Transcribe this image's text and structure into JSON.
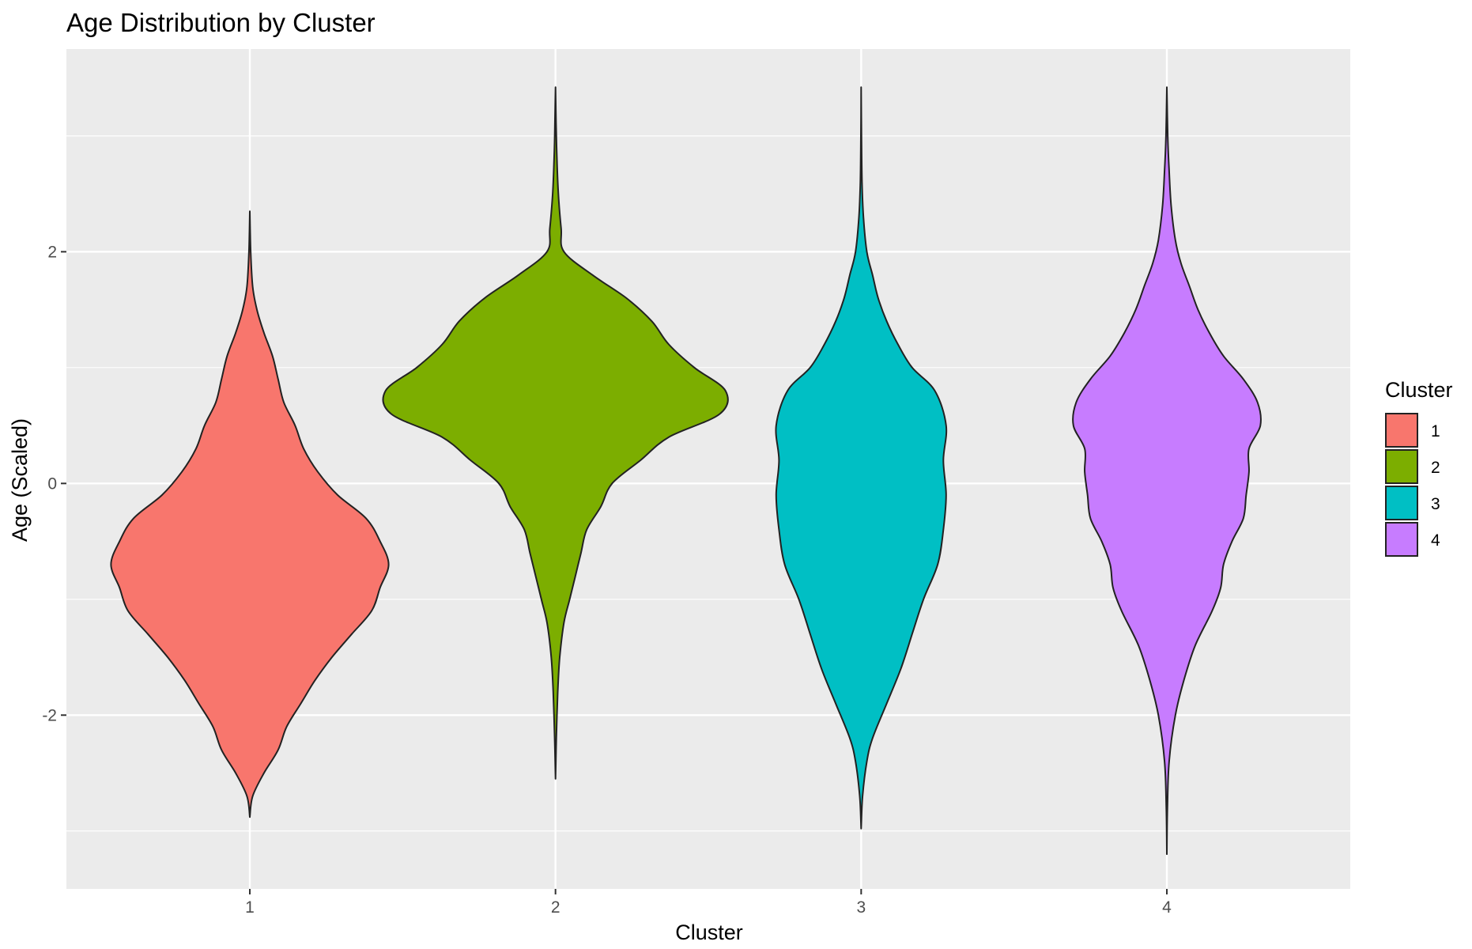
{
  "chart_data": {
    "type": "violin",
    "title": "Age Distribution by Cluster",
    "xlabel": "Cluster",
    "ylabel": "Age (Scaled)",
    "categories": [
      "1",
      "2",
      "3",
      "4"
    ],
    "yticks": [
      -2,
      0,
      2
    ],
    "ytick_labels": [
      "-2",
      "0",
      "2"
    ],
    "ylim": [
      -3.5,
      3.75
    ],
    "grid": true,
    "legend": {
      "title": "Cluster",
      "position": "right",
      "entries": [
        "1",
        "2",
        "3",
        "4"
      ]
    },
    "colors": [
      "#F8766D",
      "#7CAE00",
      "#00BFC4",
      "#C77CFF"
    ],
    "panel_background": "#EBEBEB",
    "series": [
      {
        "category": "1",
        "min": -2.88,
        "max": 2.35,
        "density": [
          [
            -2.88,
            0.0
          ],
          [
            -2.7,
            0.01
          ],
          [
            -2.5,
            0.05
          ],
          [
            -2.3,
            0.1
          ],
          [
            -2.1,
            0.13
          ],
          [
            -1.9,
            0.18
          ],
          [
            -1.7,
            0.23
          ],
          [
            -1.5,
            0.29
          ],
          [
            -1.3,
            0.36
          ],
          [
            -1.1,
            0.43
          ],
          [
            -0.9,
            0.46
          ],
          [
            -0.7,
            0.49
          ],
          [
            -0.5,
            0.46
          ],
          [
            -0.3,
            0.41
          ],
          [
            -0.1,
            0.31
          ],
          [
            0.1,
            0.24
          ],
          [
            0.3,
            0.19
          ],
          [
            0.5,
            0.16
          ],
          [
            0.7,
            0.12
          ],
          [
            0.9,
            0.1
          ],
          [
            1.1,
            0.08
          ],
          [
            1.3,
            0.05
          ],
          [
            1.5,
            0.025
          ],
          [
            1.7,
            0.01
          ],
          [
            2.0,
            0.003
          ],
          [
            2.35,
            0.0
          ]
        ]
      },
      {
        "category": "2",
        "min": -2.55,
        "max": 3.42,
        "density": [
          [
            -2.55,
            0.0
          ],
          [
            -2.2,
            0.003
          ],
          [
            -1.8,
            0.008
          ],
          [
            -1.5,
            0.015
          ],
          [
            -1.2,
            0.03
          ],
          [
            -1.0,
            0.05
          ],
          [
            -0.8,
            0.07
          ],
          [
            -0.6,
            0.09
          ],
          [
            -0.4,
            0.11
          ],
          [
            -0.2,
            0.16
          ],
          [
            0.0,
            0.2
          ],
          [
            0.2,
            0.3
          ],
          [
            0.4,
            0.4
          ],
          [
            0.6,
            0.58
          ],
          [
            0.8,
            0.6
          ],
          [
            1.0,
            0.49
          ],
          [
            1.2,
            0.4
          ],
          [
            1.4,
            0.34
          ],
          [
            1.6,
            0.25
          ],
          [
            1.8,
            0.13
          ],
          [
            2.0,
            0.03
          ],
          [
            2.2,
            0.02
          ],
          [
            2.5,
            0.01
          ],
          [
            2.8,
            0.005
          ],
          [
            3.1,
            0.002
          ],
          [
            3.42,
            0.0
          ]
        ]
      },
      {
        "category": "3",
        "min": -2.98,
        "max": 3.42,
        "density": [
          [
            -2.98,
            0.0
          ],
          [
            -2.7,
            0.005
          ],
          [
            -2.4,
            0.02
          ],
          [
            -2.2,
            0.04
          ],
          [
            -1.9,
            0.09
          ],
          [
            -1.6,
            0.14
          ],
          [
            -1.3,
            0.18
          ],
          [
            -1.0,
            0.22
          ],
          [
            -0.7,
            0.27
          ],
          [
            -0.4,
            0.29
          ],
          [
            -0.1,
            0.3
          ],
          [
            0.2,
            0.29
          ],
          [
            0.5,
            0.3
          ],
          [
            0.8,
            0.26
          ],
          [
            1.0,
            0.18
          ],
          [
            1.2,
            0.13
          ],
          [
            1.4,
            0.09
          ],
          [
            1.6,
            0.06
          ],
          [
            1.8,
            0.04
          ],
          [
            2.0,
            0.02
          ],
          [
            2.3,
            0.008
          ],
          [
            2.6,
            0.003
          ],
          [
            3.0,
            0.001
          ],
          [
            3.42,
            0.0
          ]
        ]
      },
      {
        "category": "4",
        "min": -3.2,
        "max": 3.42,
        "density": [
          [
            -3.2,
            0.0
          ],
          [
            -2.8,
            0.002
          ],
          [
            -2.4,
            0.008
          ],
          [
            -2.0,
            0.03
          ],
          [
            -1.7,
            0.06
          ],
          [
            -1.4,
            0.1
          ],
          [
            -1.1,
            0.16
          ],
          [
            -0.9,
            0.19
          ],
          [
            -0.7,
            0.2
          ],
          [
            -0.5,
            0.23
          ],
          [
            -0.3,
            0.27
          ],
          [
            -0.1,
            0.28
          ],
          [
            0.1,
            0.29
          ],
          [
            0.3,
            0.29
          ],
          [
            0.5,
            0.33
          ],
          [
            0.7,
            0.32
          ],
          [
            0.9,
            0.27
          ],
          [
            1.1,
            0.2
          ],
          [
            1.3,
            0.15
          ],
          [
            1.5,
            0.11
          ],
          [
            1.7,
            0.08
          ],
          [
            1.9,
            0.05
          ],
          [
            2.1,
            0.03
          ],
          [
            2.4,
            0.015
          ],
          [
            2.7,
            0.008
          ],
          [
            3.0,
            0.003
          ],
          [
            3.42,
            0.0
          ]
        ]
      }
    ]
  }
}
